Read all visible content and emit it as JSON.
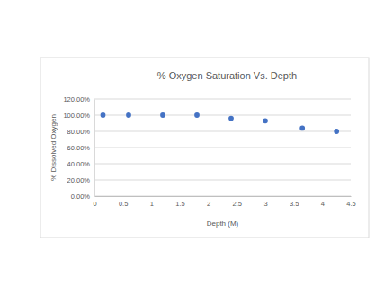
{
  "chart_data": {
    "type": "scatter",
    "title": "% Oxygen Saturation Vs. Depth",
    "x_label": "Depth (M)",
    "y_label": "% Dissolved Oxygen",
    "x": [
      0.15,
      0.6,
      1.2,
      1.8,
      2.4,
      3.0,
      3.65,
      4.25
    ],
    "values": [
      100,
      100,
      100,
      100,
      96,
      93,
      84,
      80
    ],
    "color": "#4472c4",
    "marker": "circle",
    "xlim": [
      0,
      4.5
    ],
    "xticks": [
      0,
      0.5,
      1,
      1.5,
      2,
      2.5,
      3,
      3.5,
      4,
      4.5
    ],
    "ylim": [
      0,
      120
    ],
    "yticks": [
      {
        "value": 0,
        "label": "0.00%"
      },
      {
        "value": 20,
        "label": "20.00%"
      },
      {
        "value": 40,
        "label": "40.00%"
      },
      {
        "value": 60,
        "label": "60.00%"
      },
      {
        "value": 80,
        "label": "80.00%"
      },
      {
        "value": 100,
        "label": "100.00%"
      },
      {
        "value": 120,
        "label": "120.00%"
      }
    ],
    "grid": true
  }
}
